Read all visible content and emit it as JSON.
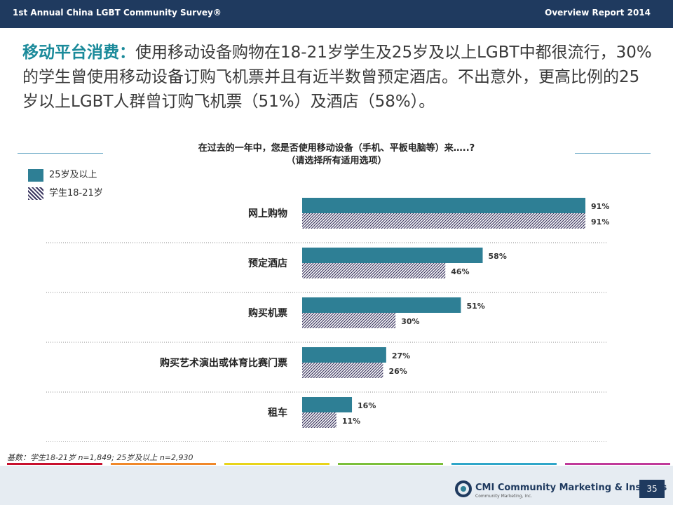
{
  "header": {
    "left_title": "1st Annual China LGBT Community Survey®",
    "right_title": "Overview Report 2014"
  },
  "headline": {
    "lead": "移动平台消费：",
    "body": "使用移动设备购物在18-21岁学生及25岁及以上LGBT中都很流行，30%的学生曾使用移动设备订购飞机票并且有近半数曾预定酒店。不出意外，更高比例的25岁以上LGBT人群曾订购飞机票（51%）及酒店（58%）。"
  },
  "chart_data": {
    "type": "bar",
    "orientation": "horizontal",
    "title": "在过去的一年中，您是否使用移动设备（手机、平板电脑等）来…..?",
    "subtitle": "（请选择所有适用选项）",
    "categories": [
      "网上购物",
      "预定酒店",
      "购买机票",
      "购买艺术演出或体育比赛门票",
      "租车"
    ],
    "series": [
      {
        "name": "25岁及以上",
        "values": [
          91,
          58,
          51,
          27,
          16
        ],
        "labels": [
          "91%",
          "58%",
          "51%",
          "27%",
          "16%"
        ],
        "color": "#2e7f95",
        "pattern": "solid"
      },
      {
        "name": "学生18-21岁",
        "values": [
          91,
          46,
          30,
          26,
          11
        ],
        "labels": [
          "91%",
          "46%",
          "30%",
          "26%",
          "11%"
        ],
        "color": "#3b3660",
        "pattern": "hatch"
      }
    ],
    "xlim": [
      0,
      100
    ],
    "xlabel": "",
    "ylabel": ""
  },
  "footnote": "基数：学生18-21岁 n=1,849; 25岁及以上 n=2,930",
  "footer": {
    "logo_text": "CMI Community Marketing & Insights",
    "logo_sub": "Community Marketing, Inc.",
    "page_number": "35"
  },
  "colors": {
    "header_bg": "#1f3a5f",
    "accent": "#1a8a9a",
    "strip": [
      "#c8102e",
      "#f0882a",
      "#e8d41a",
      "#7bbf3a",
      "#2fa6c9",
      "#c03a9a"
    ]
  }
}
